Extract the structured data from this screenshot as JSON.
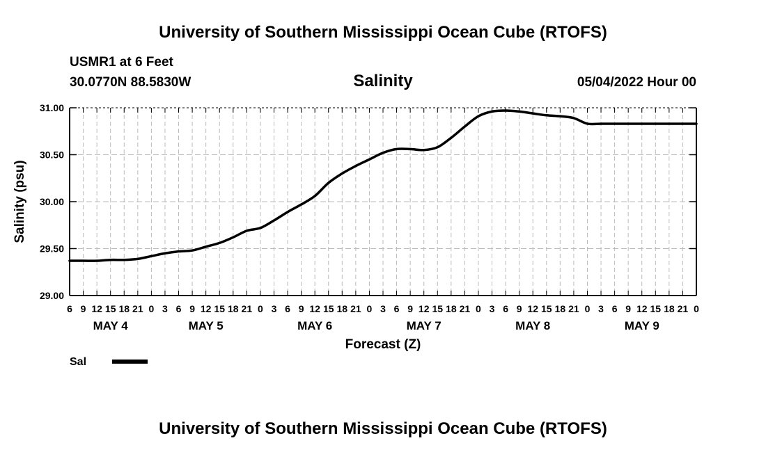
{
  "header": {
    "title": "University of Southern Mississippi Ocean Cube (RTOFS)",
    "station": "USMR1 at 6 Feet",
    "coords": "30.0770N  88.5830W",
    "subtitle": "Salinity",
    "date": "05/04/2022 Hour 00"
  },
  "footer": {
    "title": "University of Southern Mississippi Ocean Cube (RTOFS)"
  },
  "chart_data": {
    "type": "line",
    "title": "Salinity",
    "xlabel": "Forecast (Z)",
    "ylabel": "Salinity (psu)",
    "ylim": [
      29.0,
      31.0
    ],
    "yticks": [
      "29.00",
      "29.50",
      "30.00",
      "30.50",
      "31.00"
    ],
    "xlim": [
      6,
      144
    ],
    "x_unit": "forecast hours from 05/04/2022 00Z",
    "xtick_hours": [
      6,
      9,
      12,
      15,
      18,
      21,
      24,
      27,
      30,
      33,
      36,
      39,
      42,
      45,
      48,
      51,
      54,
      57,
      60,
      63,
      66,
      69,
      72,
      75,
      78,
      81,
      84,
      87,
      90,
      93,
      96,
      99,
      102,
      105,
      108,
      111,
      114,
      117,
      120,
      123,
      126,
      129,
      132,
      135,
      138,
      141,
      144
    ],
    "xtick_labels": [
      "6",
      "9",
      "12",
      "15",
      "18",
      "21",
      "0",
      "3",
      "6",
      "9",
      "12",
      "15",
      "18",
      "21",
      "0",
      "3",
      "6",
      "9",
      "12",
      "15",
      "18",
      "21",
      "0",
      "3",
      "6",
      "9",
      "12",
      "15",
      "18",
      "21",
      "0",
      "3",
      "6",
      "9",
      "12",
      "15",
      "18",
      "21",
      "0",
      "3",
      "6",
      "9",
      "12",
      "15",
      "18",
      "21",
      "0"
    ],
    "day_labels": [
      {
        "label": "MAY 4",
        "hour": 15
      },
      {
        "label": "MAY 5",
        "hour": 36
      },
      {
        "label": "MAY 6",
        "hour": 60
      },
      {
        "label": "MAY 7",
        "hour": 84
      },
      {
        "label": "MAY 8",
        "hour": 108
      },
      {
        "label": "MAY 9",
        "hour": 132
      }
    ],
    "grid": true,
    "legend": {
      "position": "bottom-left",
      "entries": [
        "Sal"
      ]
    },
    "series": [
      {
        "name": "Sal",
        "x": [
          6,
          9,
          12,
          15,
          18,
          21,
          24,
          27,
          30,
          33,
          36,
          39,
          42,
          45,
          48,
          51,
          54,
          57,
          60,
          63,
          66,
          69,
          72,
          75,
          78,
          81,
          84,
          87,
          90,
          93,
          96,
          99,
          102,
          105,
          108,
          111,
          114,
          117,
          120,
          123,
          126,
          129,
          132,
          135,
          138,
          141,
          144
        ],
        "values": [
          29.37,
          29.37,
          29.37,
          29.38,
          29.38,
          29.39,
          29.42,
          29.45,
          29.47,
          29.48,
          29.52,
          29.56,
          29.62,
          29.69,
          29.72,
          29.8,
          29.89,
          29.97,
          30.06,
          30.2,
          30.3,
          30.38,
          30.45,
          30.52,
          30.56,
          30.56,
          30.55,
          30.58,
          30.68,
          30.8,
          30.91,
          30.96,
          30.97,
          30.96,
          30.94,
          30.92,
          30.91,
          30.89,
          30.83,
          30.83,
          30.83,
          30.83,
          30.83,
          30.83,
          30.83,
          30.83,
          30.83
        ]
      }
    ]
  }
}
